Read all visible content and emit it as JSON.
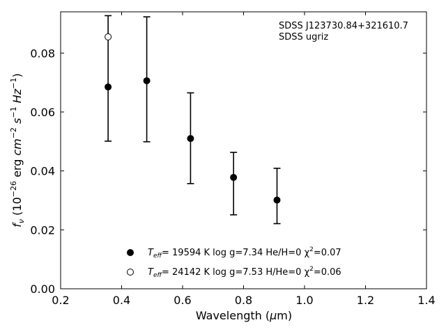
{
  "chart_data": {
    "type": "scatter",
    "xlabel": "Wavelength (μm)",
    "ylabel": "f_ν (10^-26 erg cm^-2 s^-1 Hz^-1)",
    "xlim": [
      0.2,
      1.4
    ],
    "ylim": [
      0.0,
      0.094
    ],
    "xticks": [
      0.2,
      0.4,
      0.6,
      0.8,
      1.0,
      1.2,
      1.4
    ],
    "xtick_labels": [
      "0.2",
      "0.4",
      "0.6",
      "0.8",
      "1.0",
      "1.2",
      "1.4"
    ],
    "yticks": [
      0.0,
      0.02,
      0.04,
      0.06,
      0.08
    ],
    "ytick_labels": [
      "0.00",
      "0.02",
      "0.04",
      "0.06",
      "0.08"
    ],
    "grid": false,
    "annotations": [
      "SDSS J123730.84+321610.7",
      "SDSS ugriz"
    ],
    "series": [
      {
        "name": "Teff= 19594 K  log g=7.34  He/H=0  χ2=0.07",
        "marker": "filled-circle",
        "x": [
          0.3557,
          0.4825,
          0.6261,
          0.7672,
          0.9097
        ],
        "y": [
          0.0685,
          0.0706,
          0.051,
          0.0378,
          0.0301
        ]
      },
      {
        "name": "Teff= 24142 K  log g=7.53  H/He=0  χ2=0.06",
        "marker": "open-circle",
        "x": [
          0.3557
        ],
        "y": [
          0.0855
        ]
      }
    ],
    "errorbars": {
      "x": [
        0.3557,
        0.4825,
        0.6261,
        0.7672,
        0.9097
      ],
      "y": [
        0.0714,
        0.0711,
        0.0511,
        0.0357,
        0.0315
      ],
      "yerr": [
        0.0213,
        0.0212,
        0.0154,
        0.0106,
        0.0094
      ]
    },
    "legend_position": "bottom-center",
    "legend_entries": [
      {
        "teff_sym": "T",
        "teff_sub": "eff",
        "text": "= 19594 K  log g=7.34  He/H=0  χ",
        "chi_sup": "2",
        "chi_val": "=0.07"
      },
      {
        "teff_sym": "T",
        "teff_sub": "eff",
        "text": "= 24142 K  log g=7.53  H/He=0  χ",
        "chi_sup": "2",
        "chi_val": "=0.06"
      }
    ]
  }
}
